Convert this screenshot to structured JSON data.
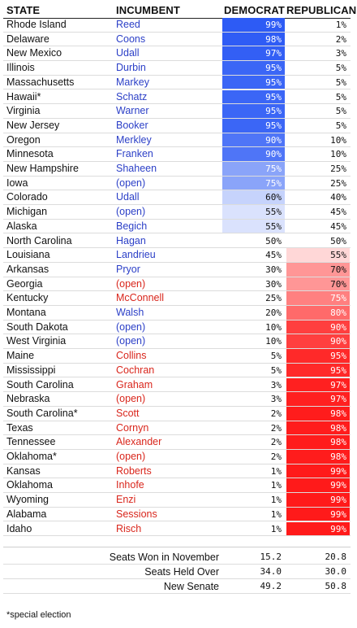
{
  "header": {
    "state": "STATE",
    "incumbent": "INCUMBENT",
    "democrat": "DEMOCRAT",
    "republican": "REPUBLICAN"
  },
  "colors": {
    "blue_text": "#2b3fc7",
    "red_text": "#d9261c",
    "dem_fill": "#2d5bf5",
    "rep_fill": "#ff1a1a"
  },
  "rows": [
    {
      "state": "Rhode Island",
      "incumbent": "Reed",
      "party": "D",
      "dem": "99%",
      "rep": "1%"
    },
    {
      "state": "Delaware",
      "incumbent": "Coons",
      "party": "D",
      "dem": "98%",
      "rep": "2%"
    },
    {
      "state": "New Mexico",
      "incumbent": "Udall",
      "party": "D",
      "dem": "97%",
      "rep": "3%"
    },
    {
      "state": "Illinois",
      "incumbent": "Durbin",
      "party": "D",
      "dem": "95%",
      "rep": "5%"
    },
    {
      "state": "Massachusetts",
      "incumbent": "Markey",
      "party": "D",
      "dem": "95%",
      "rep": "5%"
    },
    {
      "state": "Hawaii*",
      "incumbent": "Schatz",
      "party": "D",
      "dem": "95%",
      "rep": "5%"
    },
    {
      "state": "Virginia",
      "incumbent": "Warner",
      "party": "D",
      "dem": "95%",
      "rep": "5%"
    },
    {
      "state": "New Jersey",
      "incumbent": "Booker",
      "party": "D",
      "dem": "95%",
      "rep": "5%"
    },
    {
      "state": "Oregon",
      "incumbent": "Merkley",
      "party": "D",
      "dem": "90%",
      "rep": "10%"
    },
    {
      "state": "Minnesota",
      "incumbent": "Franken",
      "party": "D",
      "dem": "90%",
      "rep": "10%"
    },
    {
      "state": "New Hampshire",
      "incumbent": "Shaheen",
      "party": "D",
      "dem": "75%",
      "rep": "25%"
    },
    {
      "state": "Iowa",
      "incumbent": "(open)",
      "party": "D",
      "dem": "75%",
      "rep": "25%"
    },
    {
      "state": "Colorado",
      "incumbent": "Udall",
      "party": "D",
      "dem": "60%",
      "rep": "40%"
    },
    {
      "state": "Michigan",
      "incumbent": "(open)",
      "party": "D",
      "dem": "55%",
      "rep": "45%"
    },
    {
      "state": "Alaska",
      "incumbent": "Begich",
      "party": "D",
      "dem": "55%",
      "rep": "45%"
    },
    {
      "state": "North Carolina",
      "incumbent": "Hagan",
      "party": "D",
      "dem": "50%",
      "rep": "50%"
    },
    {
      "state": "Louisiana",
      "incumbent": "Landrieu",
      "party": "D",
      "dem": "45%",
      "rep": "55%"
    },
    {
      "state": "Arkansas",
      "incumbent": "Pryor",
      "party": "D",
      "dem": "30%",
      "rep": "70%"
    },
    {
      "state": "Georgia",
      "incumbent": "(open)",
      "party": "R",
      "dem": "30%",
      "rep": "70%"
    },
    {
      "state": "Kentucky",
      "incumbent": "McConnell",
      "party": "R",
      "dem": "25%",
      "rep": "75%"
    },
    {
      "state": "Montana",
      "incumbent": "Walsh",
      "party": "D",
      "dem": "20%",
      "rep": "80%"
    },
    {
      "state": "South Dakota",
      "incumbent": "(open)",
      "party": "D",
      "dem": "10%",
      "rep": "90%"
    },
    {
      "state": "West Virginia",
      "incumbent": "(open)",
      "party": "D",
      "dem": "10%",
      "rep": "90%"
    },
    {
      "state": "Maine",
      "incumbent": "Collins",
      "party": "R",
      "dem": "5%",
      "rep": "95%"
    },
    {
      "state": "Mississippi",
      "incumbent": "Cochran",
      "party": "R",
      "dem": "5%",
      "rep": "95%"
    },
    {
      "state": "South Carolina",
      "incumbent": "Graham",
      "party": "R",
      "dem": "3%",
      "rep": "97%"
    },
    {
      "state": "Nebraska",
      "incumbent": "(open)",
      "party": "R",
      "dem": "3%",
      "rep": "97%"
    },
    {
      "state": "South Carolina*",
      "incumbent": "Scott",
      "party": "R",
      "dem": "2%",
      "rep": "98%"
    },
    {
      "state": "Texas",
      "incumbent": "Cornyn",
      "party": "R",
      "dem": "2%",
      "rep": "98%"
    },
    {
      "state": "Tennessee",
      "incumbent": "Alexander",
      "party": "R",
      "dem": "2%",
      "rep": "98%"
    },
    {
      "state": "Oklahoma*",
      "incumbent": "(open)",
      "party": "R",
      "dem": "2%",
      "rep": "98%"
    },
    {
      "state": "Kansas",
      "incumbent": "Roberts",
      "party": "R",
      "dem": "1%",
      "rep": "99%"
    },
    {
      "state": "Oklahoma",
      "incumbent": "Inhofe",
      "party": "R",
      "dem": "1%",
      "rep": "99%"
    },
    {
      "state": "Wyoming",
      "incumbent": "Enzi",
      "party": "R",
      "dem": "1%",
      "rep": "99%"
    },
    {
      "state": "Alabama",
      "incumbent": "Sessions",
      "party": "R",
      "dem": "1%",
      "rep": "99%"
    },
    {
      "state": "Idaho",
      "incumbent": "Risch",
      "party": "R",
      "dem": "1%",
      "rep": "99%"
    }
  ],
  "totals": [
    {
      "label": "Seats Won in November",
      "dem": "15.2",
      "rep": "20.8"
    },
    {
      "label": "Seats Held Over",
      "dem": "34.0",
      "rep": "30.0"
    },
    {
      "label": "New Senate",
      "dem": "49.2",
      "rep": "50.8"
    }
  ],
  "footnote": "*special election"
}
